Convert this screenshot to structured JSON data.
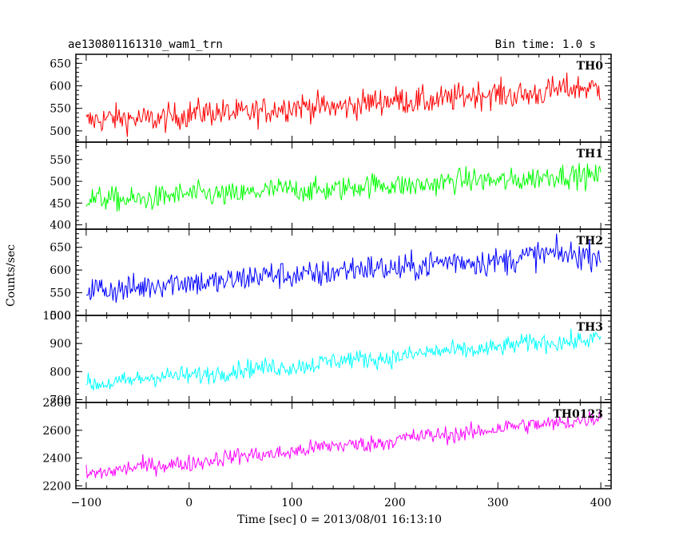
{
  "header": {
    "left_title": "ae130801161310_wam1_trn",
    "right_title": "Bin time: 1.0 s"
  },
  "chart_data": {
    "type": "line",
    "xlabel": "Time [sec] 0 = 2013/08/01 16:13:10",
    "ylabel": "Counts/sec",
    "xlim": [
      -110,
      410
    ],
    "x_ticks": [
      -100,
      0,
      100,
      200,
      300,
      400
    ],
    "x_tick_labels": [
      "−100",
      "0",
      "100",
      "200",
      "300",
      "400"
    ],
    "x_start": -100,
    "x_end": 400,
    "bin_seconds": 1.0,
    "panels": [
      {
        "name": "TH0",
        "color": "#ff0000",
        "ylim": [
          475,
          670
        ],
        "y_ticks": [
          500,
          550,
          600,
          650
        ],
        "trend_start": 520,
        "trend_end": 595,
        "noise": 28
      },
      {
        "name": "TH1",
        "color": "#00ff00",
        "ylim": [
          390,
          590
        ],
        "y_ticks": [
          400,
          450,
          500,
          550
        ],
        "trend_start": 455,
        "trend_end": 515,
        "noise": 25
      },
      {
        "name": "TH2",
        "color": "#0000ff",
        "ylim": [
          500,
          690
        ],
        "y_ticks": [
          500,
          550,
          600,
          650
        ],
        "y_tick_labels": [
          "500",
          "550",
          "600",
          "650"
        ],
        "trend_start": 555,
        "trend_end": 640,
        "noise": 28
      },
      {
        "name": "TH3",
        "color": "#00ffff",
        "ylim": [
          690,
          1000
        ],
        "y_ticks": [
          700,
          800,
          900,
          1000
        ],
        "trend_start": 755,
        "trend_end": 920,
        "noise": 30
      },
      {
        "name": "TH0123",
        "color": "#ff00ff",
        "ylim": [
          2180,
          2800
        ],
        "y_ticks": [
          2200,
          2400,
          2600,
          2800
        ],
        "trend_start": 2290,
        "trend_end": 2690,
        "noise": 55
      }
    ]
  }
}
